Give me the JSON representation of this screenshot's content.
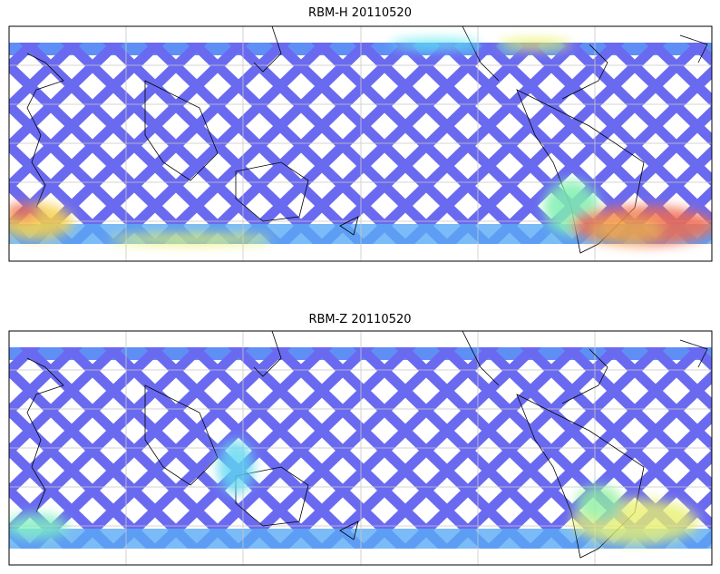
{
  "panels": [
    {
      "title": "RBM-H 20110520"
    },
    {
      "title": "RBM-Z 20110520"
    }
  ]
}
